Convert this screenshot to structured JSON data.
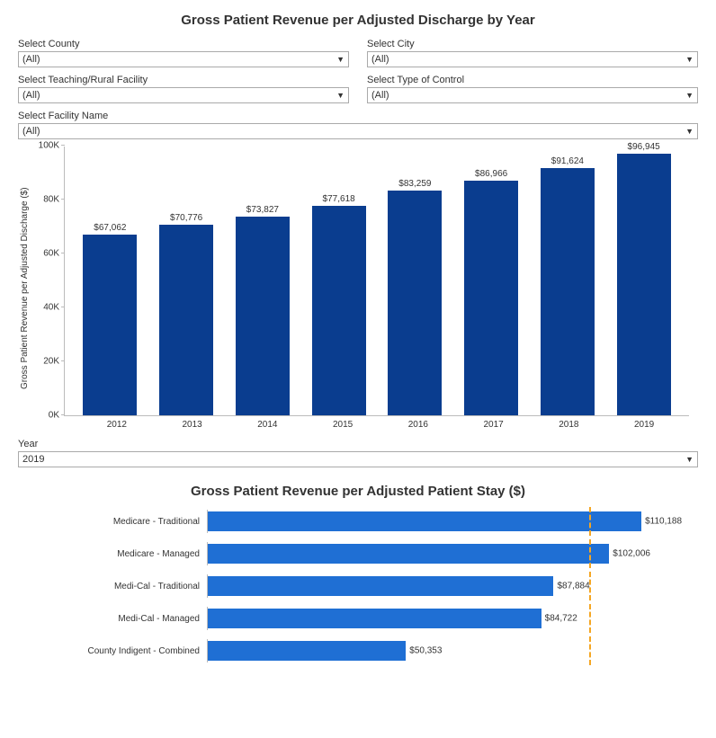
{
  "title": "Gross Patient Revenue per Adjusted Discharge by Year",
  "filters": {
    "county": {
      "label": "Select County",
      "value": "(All)"
    },
    "city": {
      "label": "Select City",
      "value": "(All)"
    },
    "teaching": {
      "label": "Select Teaching/Rural Facility",
      "value": "(All)"
    },
    "control": {
      "label": "Select Type of Control",
      "value": "(All)"
    },
    "facility": {
      "label": "Select Facility Name",
      "value": "(All)"
    }
  },
  "chart1": {
    "type": "bar",
    "y_axis_label": "Gross Patient Revenue per Adjusted Discharge ($)",
    "ylim_max": 100000,
    "ytick_step": 20000,
    "yticks": [
      {
        "v": 0,
        "label": "0K"
      },
      {
        "v": 20000,
        "label": "20K"
      },
      {
        "v": 40000,
        "label": "40K"
      },
      {
        "v": 60000,
        "label": "60K"
      },
      {
        "v": 80000,
        "label": "80K"
      },
      {
        "v": 100000,
        "label": "100K"
      }
    ],
    "bar_color": "#0a3d8f",
    "label_fontsize": 10,
    "categories": [
      "2012",
      "2013",
      "2014",
      "2015",
      "2016",
      "2017",
      "2018",
      "2019"
    ],
    "values": [
      67062,
      70776,
      73827,
      77618,
      83259,
      86966,
      91624,
      96945
    ],
    "value_labels": [
      "$67,062",
      "$70,776",
      "$73,827",
      "$77,618",
      "$83,259",
      "$86,966",
      "$91,624",
      "$96,945"
    ]
  },
  "year_filter": {
    "label": "Year",
    "value": "2019"
  },
  "title2": "Gross Patient Revenue per Adjusted Patient Stay ($)",
  "chart2": {
    "type": "hbar",
    "bar_color": "#1f6fd4",
    "xlim_max": 120000,
    "reference_line_value": 96945,
    "reference_line_color": "#f5a623",
    "categories": [
      "Medicare - Traditional",
      "Medicare - Managed",
      "Medi-Cal - Traditional",
      "Medi-Cal - Managed",
      "County Indigent - Combined"
    ],
    "values": [
      110188,
      102006,
      87884,
      84722,
      50353
    ],
    "value_labels": [
      "$110,188",
      "$102,006",
      "$87,884",
      "$84,722",
      "$50,353"
    ]
  }
}
